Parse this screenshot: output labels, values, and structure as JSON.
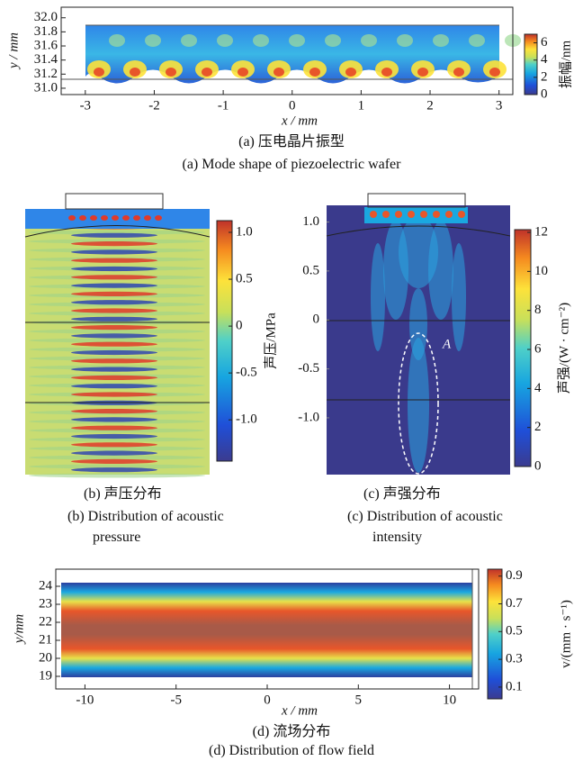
{
  "chart_data": [
    {
      "type": "heatmap",
      "caption_zh": "(a) 压电晶片振型",
      "caption_en": "(a) Mode shape of piezoelectric wafer",
      "xlabel": "x / mm",
      "ylabel": "y / mm",
      "xlim": [
        -3.35,
        3.2
      ],
      "xticks": [
        -3,
        -2,
        -1,
        0,
        1,
        2,
        3
      ],
      "ylim": [
        30.91,
        32.15
      ],
      "yticks": [
        {
          "value": 31,
          "label": "31.0"
        },
        31.2,
        31.4,
        31.6,
        31.8,
        {
          "value": 32,
          "label": "32.0"
        }
      ],
      "colorbar": {
        "label": "振幅/nm",
        "lim": [
          0,
          7
        ],
        "ticks": [
          0,
          2,
          4,
          6
        ]
      }
    },
    {
      "type": "heatmap",
      "caption_zh": "(b) 声压分布",
      "caption_en": "(b) Distribution of acoustic pressure",
      "colorbar": {
        "label": "声压/MPa",
        "lim": [
          -1.44,
          1.125
        ],
        "ticks": [
          {
            "value": 1,
            "label": "1.0"
          },
          0.5,
          0,
          -0.5,
          {
            "value": -1,
            "label": "-1.0"
          }
        ]
      }
    },
    {
      "type": "heatmap",
      "caption_zh": "(c) 声强分布",
      "caption_en": "(c) Distribution of acoustic intensity",
      "annotation": "A",
      "ylim": [
        -1.58,
        1.29
      ],
      "yticks": [
        {
          "value": 1,
          "label": "1.0"
        },
        0.5,
        0,
        -0.5,
        {
          "value": -1,
          "label": "-1.0"
        }
      ],
      "colorbar": {
        "label": "声强/(W · cm⁻²)",
        "lim": [
          0,
          12.14
        ],
        "ticks": [
          0,
          2,
          4,
          6,
          8,
          10,
          12
        ]
      }
    },
    {
      "type": "heatmap",
      "caption_zh": "(d) 流场分布",
      "caption_en": "(d) Distribution of flow field",
      "xlabel": "x / mm",
      "ylabel": "y/mm",
      "xlim": [
        -11.6,
        11.6
      ],
      "xticks": [
        -10,
        -5,
        0,
        5,
        10
      ],
      "ylim": [
        18.3,
        24.95
      ],
      "yticks": [
        19,
        20,
        21,
        22,
        23,
        24
      ],
      "colorbar": {
        "label": "v/(mm · s⁻¹)",
        "lim": [
          0.015,
          0.95
        ],
        "ticks": [
          0.1,
          0.3,
          0.5,
          0.7,
          0.9
        ]
      }
    }
  ]
}
